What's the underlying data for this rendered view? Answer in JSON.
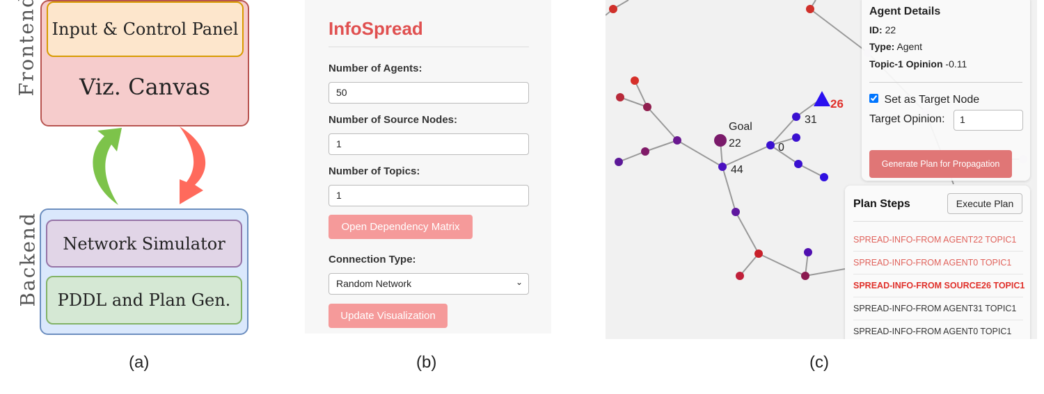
{
  "panel_a": {
    "caption": "(a)",
    "frontend_label": "Frontend",
    "backend_label": "Backend",
    "input_panel": "Input & Control Panel",
    "viz_canvas": "Viz. Canvas",
    "network_simulator": "Network Simulator",
    "pddl": "PDDL and Plan Gen.",
    "colors": {
      "frontend": "#f8cecc",
      "backend": "#dae8fc",
      "input": "#ffe6cc",
      "simulator": "#e1d5e7",
      "pddl": "#d5e8d4",
      "up_arrow": "#7dc34a",
      "down_arrow": "#ff6a5c"
    }
  },
  "panel_b": {
    "caption": "(b)",
    "title": "InfoSpread",
    "agents_label": "Number of Agents:",
    "agents_value": "50",
    "sources_label": "Number of Source Nodes:",
    "sources_value": "1",
    "topics_label": "Number of Topics:",
    "topics_value": "1",
    "dependency_button": "Open Dependency Matrix",
    "connection_label": "Connection Type:",
    "connection_value": "Random Network",
    "update_button": "Update Visualization"
  },
  "panel_c": {
    "caption": "(c)",
    "goal_label": "Goal",
    "node_labels": {
      "goal": "22",
      "n44": "44",
      "n0": "0",
      "n31": "31",
      "source": "26"
    },
    "agent_details": {
      "title": "Agent Details",
      "id_label": "ID:",
      "id_value": "22",
      "type_label": "Type:",
      "type_value": "Agent",
      "opinion_label": "Topic-1 Opinion",
      "opinion_value": "-0.11",
      "target_checkbox": "Set as Target Node",
      "target_checked": true,
      "target_opinion_label": "Target Opinion:",
      "target_opinion_value": "1",
      "generate_button": "Generate Plan for Propagation"
    },
    "plan": {
      "title": "Plan Steps",
      "execute_button": "Execute Plan",
      "steps": [
        {
          "text": "SPREAD-INFO-FROM AGENT22 TOPIC1",
          "state": "done"
        },
        {
          "text": "SPREAD-INFO-FROM AGENT0 TOPIC1",
          "state": "done"
        },
        {
          "text": "SPREAD-INFO-FROM SOURCE26 TOPIC1",
          "state": "current"
        },
        {
          "text": "SPREAD-INFO-FROM AGENT31 TOPIC1",
          "state": "pending"
        },
        {
          "text": "SPREAD-INFO-FROM AGENT0 TOPIC1",
          "state": "pending"
        }
      ]
    }
  }
}
